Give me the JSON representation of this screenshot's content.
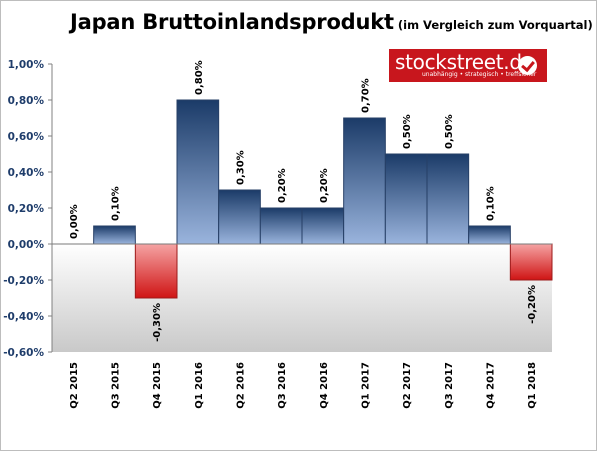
{
  "chart_data": {
    "type": "bar",
    "title": "Japan Bruttoinlandsprodukt",
    "subtitle": "(im Vergleich zum Vorquartal)",
    "categories": [
      "Q2 2015",
      "Q3 2015",
      "Q4 2015",
      "Q1 2016",
      "Q2 2016",
      "Q3 2016",
      "Q4 2016",
      "Q1 2017",
      "Q2 2017",
      "Q3 2017",
      "Q4 2017",
      "Q1 2018"
    ],
    "values": [
      0.0,
      0.1,
      -0.3,
      0.8,
      0.3,
      0.2,
      0.2,
      0.7,
      0.5,
      0.5,
      0.1,
      -0.2
    ],
    "data_labels": [
      "0,00%",
      "0,10%",
      "-0,30%",
      "0,80%",
      "0,30%",
      "0,20%",
      "0,20%",
      "0,70%",
      "0,50%",
      "0,50%",
      "0,10%",
      "-0,20%"
    ],
    "ylim": [
      -0.6,
      1.0
    ],
    "yticks": [
      1.0,
      0.8,
      0.6,
      0.4,
      0.2,
      0.0,
      -0.2,
      -0.4,
      -0.6
    ],
    "ytick_labels": [
      "1,00%",
      "0,80%",
      "0,60%",
      "0,40%",
      "0,20%",
      "0,00%",
      "-0,20%",
      "-0,40%",
      "-0,60%"
    ],
    "grid": false,
    "legend": "none",
    "colors": {
      "positive_top": "#1b3b68",
      "positive_bottom": "#9ab4dd",
      "negative_top": "#f5a3a3",
      "negative_bottom": "#cf1414",
      "axis_text": "#1f3d6b"
    }
  },
  "logo": {
    "name": "stockstreet.de",
    "tagline": "unabhängig • strategisch • treffsicher"
  }
}
